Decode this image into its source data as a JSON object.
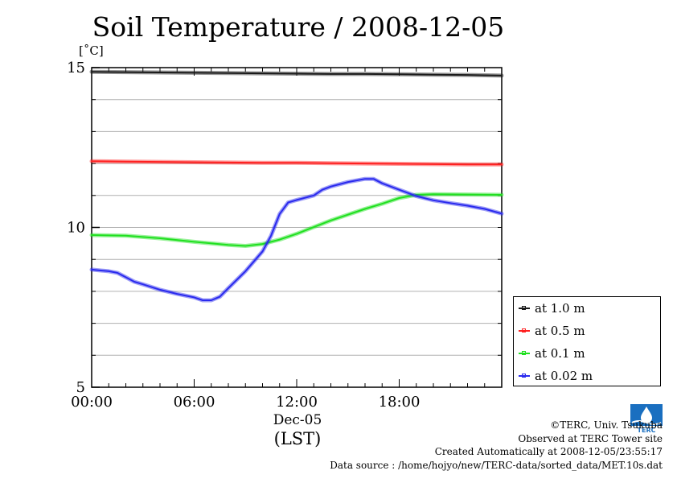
{
  "title": "Soil Temperature / 2008-12-05",
  "unit": "[˚C]",
  "chart_data": {
    "type": "line",
    "title": "Soil Temperature / 2008-12-05",
    "ylabel": "[˚C]",
    "xlabel": "(LST)",
    "xlim": [
      0,
      24
    ],
    "ylim": [
      5,
      15
    ],
    "x_ticks": [
      "00:00",
      "06:00",
      "12:00",
      "18:00"
    ],
    "x_date": "Dec-05",
    "y_ticks": [
      "5",
      "10",
      "15"
    ],
    "grid": true,
    "legend_position": "right",
    "series": [
      {
        "name": "at 1.0 m",
        "color": "#1a1a1a",
        "x": [
          0,
          2,
          4,
          6,
          8,
          10,
          12,
          14,
          16,
          18,
          20,
          22,
          24
        ],
        "y": [
          14.87,
          14.86,
          14.85,
          14.84,
          14.83,
          14.82,
          14.81,
          14.8,
          14.8,
          14.79,
          14.78,
          14.77,
          14.75
        ]
      },
      {
        "name": "at 0.5 m",
        "color": "#ff2020",
        "x": [
          0,
          2,
          4,
          6,
          8,
          10,
          12,
          14,
          16,
          18,
          20,
          22,
          24
        ],
        "y": [
          12.07,
          12.06,
          12.05,
          12.04,
          12.03,
          12.02,
          12.02,
          12.01,
          12.0,
          11.99,
          11.98,
          11.97,
          11.97
        ]
      },
      {
        "name": "at 0.1 m",
        "color": "#20e020",
        "x": [
          0,
          2,
          4,
          6,
          8,
          9,
          10,
          11,
          12,
          14,
          16,
          17,
          18,
          19,
          20,
          22,
          24
        ],
        "y": [
          9.76,
          9.74,
          9.66,
          9.55,
          9.45,
          9.42,
          9.48,
          9.62,
          9.8,
          10.22,
          10.58,
          10.74,
          10.92,
          11.02,
          11.04,
          11.03,
          11.02
        ]
      },
      {
        "name": "at 0.02 m",
        "color": "#2a2aee",
        "x": [
          0,
          1,
          1.5,
          2,
          2.5,
          3,
          4,
          5,
          6,
          6.5,
          7,
          7.5,
          8,
          9,
          10,
          10.5,
          11,
          11.5,
          12,
          13,
          13.5,
          14,
          15,
          16,
          16.5,
          17,
          18,
          19,
          20,
          21,
          22,
          23,
          24
        ],
        "y": [
          8.68,
          8.63,
          8.58,
          8.44,
          8.3,
          8.22,
          8.05,
          7.92,
          7.81,
          7.72,
          7.72,
          7.83,
          8.1,
          8.63,
          9.25,
          9.74,
          10.42,
          10.78,
          10.86,
          11.0,
          11.18,
          11.28,
          11.42,
          11.52,
          11.52,
          11.38,
          11.18,
          10.98,
          10.85,
          10.76,
          10.68,
          10.58,
          10.43
        ]
      }
    ]
  },
  "legend": [
    "at 1.0 m",
    "at 0.5 m",
    "at 0.1 m",
    "at 0.02 m"
  ],
  "credits": [
    "©TERC, Univ. Tsukuba",
    "Observed at TERC Tower site",
    "Created Automatically at 2008-12-05/23:55:17",
    "Data source : /home/hojyo/new/TERC-data/sorted_data/MET.10s.dat"
  ],
  "logo_text": "TERC"
}
